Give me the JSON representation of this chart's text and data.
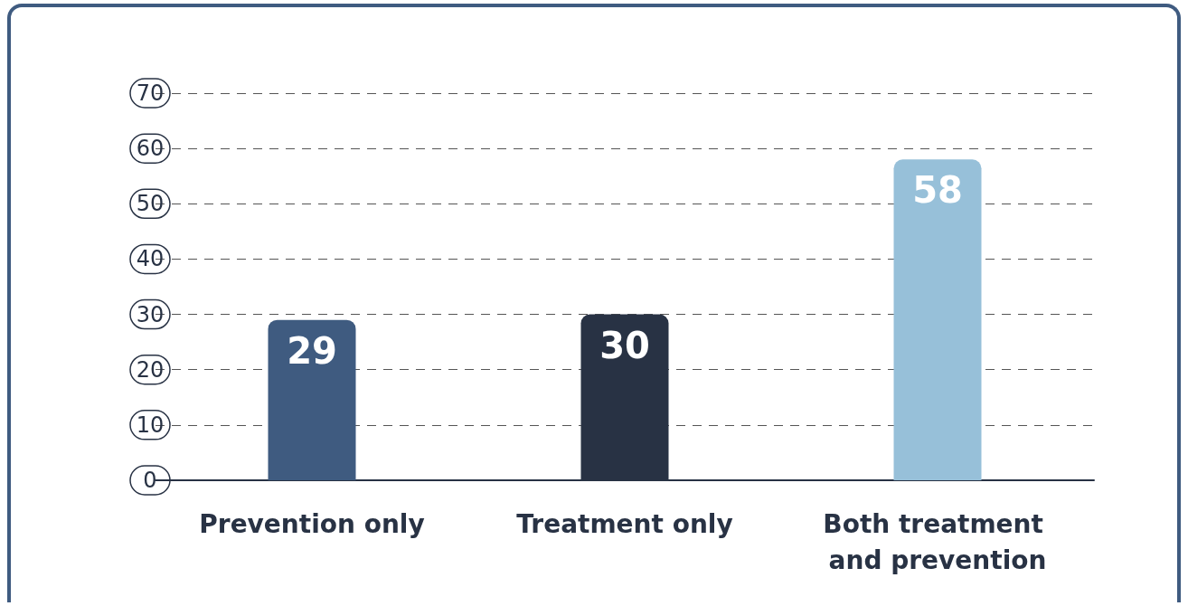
{
  "chart_data": {
    "type": "bar",
    "categories": [
      "Prevention only",
      "Treatment only",
      "Both treatment and prevention"
    ],
    "values": [
      29,
      30,
      58
    ],
    "colors": [
      "#3f5b80",
      "#283244",
      "#97c0d9"
    ],
    "ylim": [
      0,
      70
    ],
    "yticks": [
      0,
      10,
      20,
      30,
      40,
      50,
      60,
      70
    ],
    "grid": "y",
    "data_labels": true
  }
}
